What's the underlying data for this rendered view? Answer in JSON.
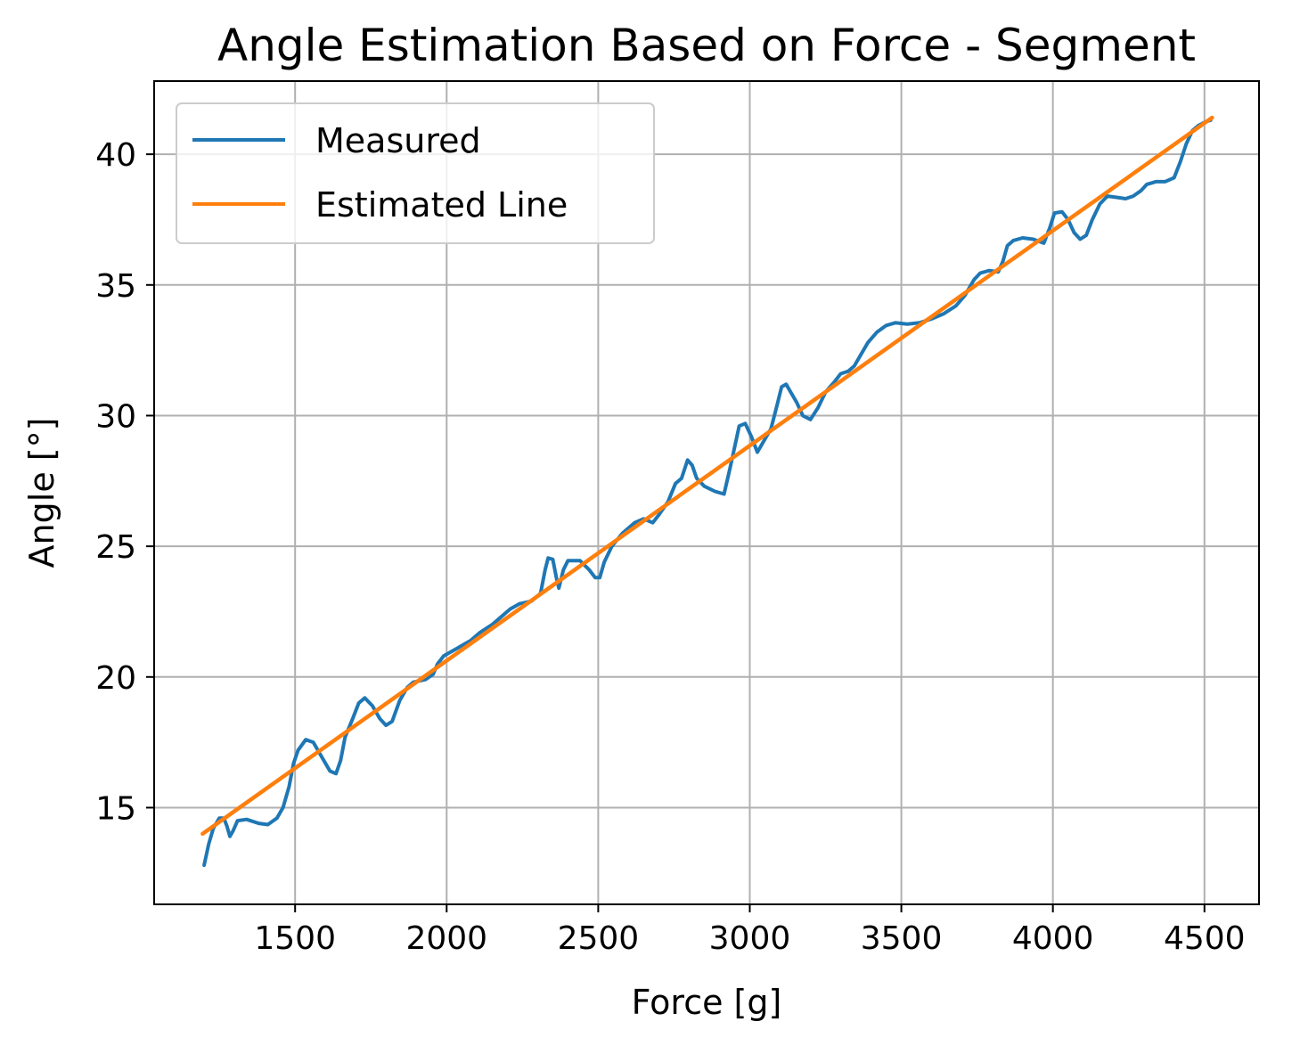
{
  "chart_data": {
    "type": "line",
    "title": "Angle Estimation Based on Force - Segment",
    "xlabel": "Force [g]",
    "ylabel": "Angle [°]",
    "xlim": [
      1035,
      4680
    ],
    "ylim": [
      11.3,
      42.8
    ],
    "xticks": [
      1500,
      2000,
      2500,
      3000,
      3500,
      4000,
      4500
    ],
    "yticks": [
      15,
      20,
      25,
      30,
      35,
      40
    ],
    "grid": true,
    "legend": {
      "position": "top-left",
      "entries": [
        "Measured",
        "Estimated Line"
      ]
    },
    "series": [
      {
        "name": "Measured",
        "color": "#1f77b4",
        "points": [
          [
            1200,
            12.8
          ],
          [
            1215,
            13.6
          ],
          [
            1230,
            14.2
          ],
          [
            1250,
            14.6
          ],
          [
            1265,
            14.6
          ],
          [
            1275,
            14.3
          ],
          [
            1285,
            13.9
          ],
          [
            1295,
            14.1
          ],
          [
            1310,
            14.5
          ],
          [
            1340,
            14.55
          ],
          [
            1380,
            14.4
          ],
          [
            1410,
            14.35
          ],
          [
            1440,
            14.6
          ],
          [
            1460,
            15.0
          ],
          [
            1480,
            15.8
          ],
          [
            1495,
            16.7
          ],
          [
            1510,
            17.2
          ],
          [
            1535,
            17.6
          ],
          [
            1560,
            17.5
          ],
          [
            1590,
            16.9
          ],
          [
            1615,
            16.4
          ],
          [
            1635,
            16.3
          ],
          [
            1650,
            16.8
          ],
          [
            1665,
            17.7
          ],
          [
            1690,
            18.4
          ],
          [
            1710,
            19.0
          ],
          [
            1730,
            19.2
          ],
          [
            1755,
            18.9
          ],
          [
            1780,
            18.4
          ],
          [
            1800,
            18.15
          ],
          [
            1820,
            18.3
          ],
          [
            1845,
            19.1
          ],
          [
            1870,
            19.6
          ],
          [
            1890,
            19.8
          ],
          [
            1910,
            19.85
          ],
          [
            1930,
            19.9
          ],
          [
            1955,
            20.1
          ],
          [
            1970,
            20.5
          ],
          [
            1990,
            20.8
          ],
          [
            2020,
            21.0
          ],
          [
            2050,
            21.2
          ],
          [
            2080,
            21.4
          ],
          [
            2110,
            21.7
          ],
          [
            2150,
            22.0
          ],
          [
            2180,
            22.3
          ],
          [
            2210,
            22.6
          ],
          [
            2240,
            22.8
          ],
          [
            2280,
            22.9
          ],
          [
            2310,
            23.2
          ],
          [
            2325,
            24.1
          ],
          [
            2335,
            24.55
          ],
          [
            2350,
            24.5
          ],
          [
            2362,
            23.8
          ],
          [
            2370,
            23.4
          ],
          [
            2385,
            24.1
          ],
          [
            2400,
            24.45
          ],
          [
            2440,
            24.45
          ],
          [
            2470,
            24.1
          ],
          [
            2490,
            23.8
          ],
          [
            2505,
            23.8
          ],
          [
            2520,
            24.4
          ],
          [
            2545,
            25.0
          ],
          [
            2580,
            25.5
          ],
          [
            2620,
            25.9
          ],
          [
            2650,
            26.05
          ],
          [
            2680,
            25.9
          ],
          [
            2700,
            26.2
          ],
          [
            2730,
            26.7
          ],
          [
            2755,
            27.4
          ],
          [
            2775,
            27.6
          ],
          [
            2795,
            28.3
          ],
          [
            2810,
            28.1
          ],
          [
            2825,
            27.6
          ],
          [
            2850,
            27.3
          ],
          [
            2885,
            27.1
          ],
          [
            2915,
            27.0
          ],
          [
            2935,
            28.0
          ],
          [
            2950,
            28.8
          ],
          [
            2965,
            29.6
          ],
          [
            2985,
            29.7
          ],
          [
            3005,
            29.2
          ],
          [
            3025,
            28.6
          ],
          [
            3045,
            29.0
          ],
          [
            3070,
            29.5
          ],
          [
            3090,
            30.4
          ],
          [
            3105,
            31.1
          ],
          [
            3120,
            31.2
          ],
          [
            3135,
            30.9
          ],
          [
            3155,
            30.5
          ],
          [
            3175,
            30.0
          ],
          [
            3200,
            29.85
          ],
          [
            3225,
            30.3
          ],
          [
            3250,
            30.9
          ],
          [
            3280,
            31.3
          ],
          [
            3300,
            31.6
          ],
          [
            3325,
            31.7
          ],
          [
            3345,
            31.9
          ],
          [
            3365,
            32.3
          ],
          [
            3390,
            32.8
          ],
          [
            3420,
            33.2
          ],
          [
            3450,
            33.45
          ],
          [
            3480,
            33.55
          ],
          [
            3520,
            33.5
          ],
          [
            3560,
            33.55
          ],
          [
            3600,
            33.7
          ],
          [
            3640,
            33.9
          ],
          [
            3680,
            34.2
          ],
          [
            3710,
            34.6
          ],
          [
            3740,
            35.2
          ],
          [
            3760,
            35.45
          ],
          [
            3790,
            35.55
          ],
          [
            3820,
            35.5
          ],
          [
            3835,
            35.9
          ],
          [
            3850,
            36.5
          ],
          [
            3870,
            36.7
          ],
          [
            3900,
            36.8
          ],
          [
            3935,
            36.75
          ],
          [
            3970,
            36.6
          ],
          [
            3990,
            37.2
          ],
          [
            4005,
            37.75
          ],
          [
            4030,
            37.8
          ],
          [
            4050,
            37.5
          ],
          [
            4070,
            37.0
          ],
          [
            4090,
            36.75
          ],
          [
            4110,
            36.9
          ],
          [
            4130,
            37.5
          ],
          [
            4155,
            38.1
          ],
          [
            4180,
            38.4
          ],
          [
            4210,
            38.35
          ],
          [
            4240,
            38.3
          ],
          [
            4265,
            38.4
          ],
          [
            4290,
            38.6
          ],
          [
            4310,
            38.85
          ],
          [
            4340,
            38.95
          ],
          [
            4370,
            38.95
          ],
          [
            4400,
            39.1
          ],
          [
            4420,
            39.7
          ],
          [
            4440,
            40.4
          ],
          [
            4460,
            40.9
          ],
          [
            4480,
            41.1
          ],
          [
            4505,
            41.25
          ],
          [
            4520,
            41.3
          ]
        ]
      },
      {
        "name": "Estimated Line",
        "color": "#ff7f0e",
        "points": [
          [
            1195,
            14.0
          ],
          [
            4525,
            41.4
          ]
        ]
      }
    ]
  }
}
